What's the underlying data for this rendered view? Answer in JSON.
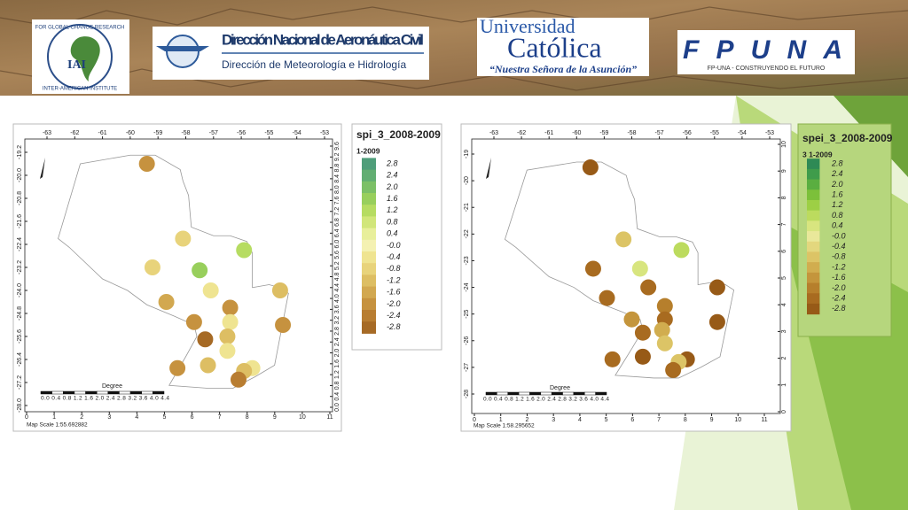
{
  "header": {
    "iai": {
      "abbr": "IAI",
      "ring_top": "FOR GLOBAL CHANGE RESEARCH",
      "ring_bottom": "INTER-AMERICAN INSTITUTE"
    },
    "dinac": {
      "title": "Dirección Nacional de Aeronáutica Civil",
      "subtitle": "Dirección de Meteorología e Hidrología"
    },
    "uc": {
      "line1": "Universidad",
      "line2": "Católica",
      "motto": "“Nuestra Señora de la Asunción”"
    },
    "fpuna": {
      "logo": "FPUNA",
      "tagline": "FP-UNA - CONSTRUYENDO EL FUTURO"
    }
  },
  "maps": [
    {
      "top_ticks": [
        -63,
        -62,
        -61,
        -60,
        -59,
        -58,
        -57,
        -56,
        -55,
        -54,
        -53
      ],
      "left_ticks": [
        -19.2,
        {
          "value": -20,
          "label": "-20.0"
        },
        -20.8,
        -21.6,
        -22.4,
        -23.2,
        {
          "value": -24,
          "label": "-24.0"
        },
        -24.8,
        -25.6,
        -26.4,
        -27.2,
        {
          "value": -28,
          "label": "-28.0"
        }
      ],
      "right_ticks": [
        {
          "value": 0,
          "label": "0.0"
        },
        0.4,
        0.8,
        1.2,
        1.6,
        {
          "value": 2,
          "label": "2.0"
        },
        2.4,
        2.8,
        3.2,
        3.6,
        {
          "value": 4,
          "label": "4.0"
        },
        4.4,
        4.8,
        5.2,
        5.6,
        {
          "value": 6,
          "label": "6.0"
        },
        6.4,
        6.8,
        7.2,
        7.6,
        {
          "value": 8,
          "label": "8.0"
        },
        8.4,
        8.8,
        9.2,
        9.6
      ],
      "bottom_ticks": [
        0,
        1,
        2,
        3,
        4,
        5,
        6,
        7,
        8,
        9,
        10,
        11
      ],
      "scale_labels": "0.0 0.4 0.8 1.2 1.6 2.0 2.4 2.8 3.2 3.6 4.0 4.4",
      "scale_unit": "Degree",
      "map_scale": "Map Scale 1:55.692882",
      "legend": {
        "title": "spi_3_2008-2009",
        "subtitle": "1-2009",
        "entries": [
          {
            "value": 2.8,
            "label": "2.8",
            "color": "#4f9e7a"
          },
          {
            "value": 2.4,
            "label": "2.4",
            "color": "#62ae72"
          },
          {
            "value": 2,
            "label": "2.0",
            "color": "#7cc067"
          },
          {
            "value": 1.6,
            "label": "1.6",
            "color": "#98cf5c"
          },
          {
            "value": 1.2,
            "label": "1.2",
            "color": "#b6dc62"
          },
          {
            "value": 0.8,
            "label": "0.8",
            "color": "#d1e67a"
          },
          {
            "value": 0.4,
            "label": "0.4",
            "color": "#e8ef9b"
          },
          {
            "value": 0,
            "label": "-0.0",
            "color": "#f4f1b2"
          },
          {
            "value": -0.4,
            "label": "-0.4",
            "color": "#efe491"
          },
          {
            "value": -0.8,
            "label": "-0.8",
            "color": "#e8d37b"
          },
          {
            "value": -1.2,
            "label": "-1.2",
            "color": "#ddbe63"
          },
          {
            "value": -1.6,
            "label": "-1.6",
            "color": "#d2a850"
          },
          {
            "value": -2,
            "label": "-2.0",
            "color": "#c6923f"
          },
          {
            "value": -2.4,
            "label": "-2.4",
            "color": "#b87d31"
          },
          {
            "value": -2.8,
            "label": "-2.8",
            "color": "#a66a25"
          }
        ]
      },
      "stations": [
        {
          "lon": -59.4,
          "lat": -19.6,
          "value": -2
        },
        {
          "lon": -58.1,
          "lat": -22.2,
          "value": -0.8
        },
        {
          "lon": -55.9,
          "lat": -22.6,
          "value": 1.2
        },
        {
          "lon": -59.2,
          "lat": -23.2,
          "value": -0.8
        },
        {
          "lon": -57.5,
          "lat": -23.3,
          "value": 1.6
        },
        {
          "lon": -57.1,
          "lat": -24,
          "value": -0.4
        },
        {
          "lon": -54.6,
          "lat": -24,
          "value": -1.2
        },
        {
          "lon": -58.7,
          "lat": -24.4,
          "value": -1.6
        },
        {
          "lon": -56.4,
          "lat": -24.6,
          "value": -2
        },
        {
          "lon": -57.7,
          "lat": -25.1,
          "value": -2
        },
        {
          "lon": -56.4,
          "lat": -25.1,
          "value": -0.4
        },
        {
          "lon": -54.5,
          "lat": -25.2,
          "value": -2
        },
        {
          "lon": -57.3,
          "lat": -25.7,
          "value": -2.8
        },
        {
          "lon": -56.5,
          "lat": -25.6,
          "value": -1.2
        },
        {
          "lon": -56.5,
          "lat": -26.1,
          "value": -0.4
        },
        {
          "lon": -58.3,
          "lat": -26.7,
          "value": -2
        },
        {
          "lon": -57.2,
          "lat": -26.6,
          "value": -1.2
        },
        {
          "lon": -55.6,
          "lat": -26.7,
          "value": -0.4
        },
        {
          "lon": -55.9,
          "lat": -26.8,
          "value": -1.2
        },
        {
          "lon": -56.1,
          "lat": -27.1,
          "value": -2.4
        }
      ]
    },
    {
      "top_ticks": [
        -63,
        -62,
        -61,
        -60,
        -59,
        -58,
        -57,
        -56,
        -55,
        -54,
        -53
      ],
      "left_ticks": [
        -19,
        -20,
        -21,
        -22,
        -23,
        -24,
        -25,
        -26,
        -27,
        -28
      ],
      "right_ticks": [
        0,
        1,
        2,
        3,
        4,
        5,
        6,
        7,
        8,
        9,
        10
      ],
      "bottom_ticks": [
        0,
        1,
        2,
        3,
        4,
        5,
        6,
        7,
        8,
        9,
        10,
        11
      ],
      "scale_labels": "0.0 0.4 0.8 1.2 1.6 2.0 2.4 2.8 3.2 3.6 4.0 4.4",
      "scale_unit": "Degree",
      "map_scale": "Map Scale 1:58.295652",
      "legend": {
        "title": "spei_3_2008-2009",
        "subtitle": "3 1-2009",
        "entries": [
          {
            "value": 2.8,
            "label": "2.8",
            "color": "#2e8a55"
          },
          {
            "value": 2.4,
            "label": "2.4",
            "color": "#3f9c4b"
          },
          {
            "value": 2,
            "label": "2.0",
            "color": "#5aae40"
          },
          {
            "value": 1.6,
            "label": "1.6",
            "color": "#7cc03a"
          },
          {
            "value": 1.2,
            "label": "1.2",
            "color": "#9dcf45"
          },
          {
            "value": 0.8,
            "label": "0.8",
            "color": "#bcdb5e"
          },
          {
            "value": 0.4,
            "label": "0.4",
            "color": "#d8e57f"
          },
          {
            "value": 0,
            "label": "-0.0",
            "color": "#e9e89a"
          },
          {
            "value": -0.4,
            "label": "-0.4",
            "color": "#e3d77e"
          },
          {
            "value": -0.8,
            "label": "-0.8",
            "color": "#dcc466"
          },
          {
            "value": -1.2,
            "label": "-1.2",
            "color": "#d1ad4f"
          },
          {
            "value": -1.6,
            "label": "-1.6",
            "color": "#c4953c"
          },
          {
            "value": -2,
            "label": "-2.0",
            "color": "#b67f2c"
          },
          {
            "value": -2.4,
            "label": "-2.4",
            "color": "#a86b20"
          },
          {
            "value": -2.8,
            "label": "-2.8",
            "color": "#975a17"
          }
        ]
      },
      "stations": [
        {
          "lon": -59.5,
          "lat": -19.5,
          "value": -2.8
        },
        {
          "lon": -58.3,
          "lat": -22.2,
          "value": -0.8
        },
        {
          "lon": -56.2,
          "lat": -22.6,
          "value": 0.8
        },
        {
          "lon": -59.4,
          "lat": -23.3,
          "value": -2.4
        },
        {
          "lon": -57.7,
          "lat": -23.3,
          "value": 0.4
        },
        {
          "lon": -57.4,
          "lat": -24,
          "value": -2.4
        },
        {
          "lon": -54.9,
          "lat": -24,
          "value": -2.8
        },
        {
          "lon": -58.9,
          "lat": -24.4,
          "value": -2.4
        },
        {
          "lon": -56.8,
          "lat": -24.7,
          "value": -2
        },
        {
          "lon": -58,
          "lat": -25.2,
          "value": -1.6
        },
        {
          "lon": -56.8,
          "lat": -25.2,
          "value": -2.4
        },
        {
          "lon": -54.9,
          "lat": -25.3,
          "value": -2.8
        },
        {
          "lon": -57.6,
          "lat": -25.7,
          "value": -2.4
        },
        {
          "lon": -56.9,
          "lat": -25.6,
          "value": -1.2
        },
        {
          "lon": -56.8,
          "lat": -26.1,
          "value": -0.8
        },
        {
          "lon": -58.7,
          "lat": -26.7,
          "value": -2.4
        },
        {
          "lon": -57.6,
          "lat": -26.6,
          "value": -2.8
        },
        {
          "lon": -56,
          "lat": -26.7,
          "value": -2.8
        },
        {
          "lon": -56.3,
          "lat": -26.8,
          "value": -0.8
        },
        {
          "lon": -56.5,
          "lat": -27.1,
          "value": -2.4
        }
      ]
    }
  ]
}
